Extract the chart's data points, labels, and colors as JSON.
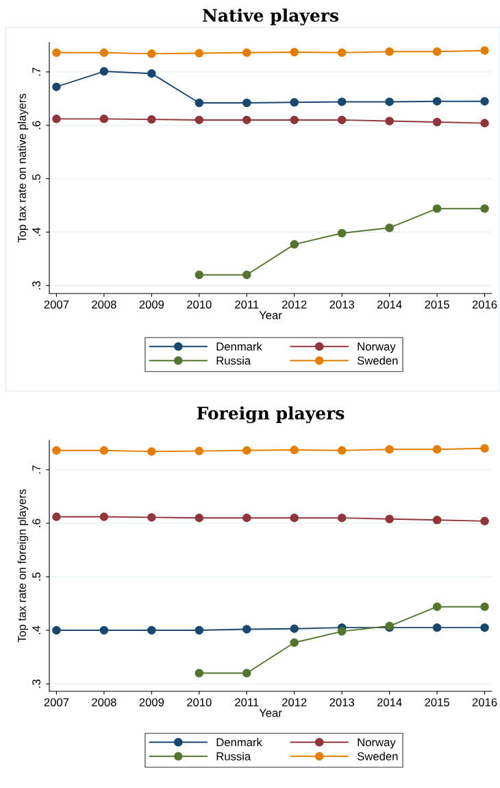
{
  "chart_data": [
    {
      "type": "line",
      "title": "Native players",
      "xlabel": "Year",
      "ylabel": "Top tax rate on native players",
      "x": [
        2007,
        2008,
        2009,
        2010,
        2011,
        2012,
        2013,
        2014,
        2015,
        2016
      ],
      "series": [
        {
          "name": "Denmark",
          "color": "#1a476f",
          "values": [
            0.672,
            0.701,
            0.697,
            0.642,
            0.642,
            0.643,
            0.644,
            0.644,
            0.645,
            0.645
          ]
        },
        {
          "name": "Norway",
          "color": "#90353b",
          "values": [
            0.612,
            0.612,
            0.611,
            0.61,
            0.61,
            0.61,
            0.61,
            0.608,
            0.606,
            0.604
          ]
        },
        {
          "name": "Russia",
          "color": "#55752f",
          "values": [
            null,
            null,
            null,
            0.32,
            0.32,
            0.377,
            0.398,
            0.408,
            0.444,
            0.444
          ]
        },
        {
          "name": "Sweden",
          "color": "#e37e00",
          "values": [
            0.736,
            0.736,
            0.734,
            0.735,
            0.736,
            0.737,
            0.736,
            0.738,
            0.738,
            0.74
          ]
        }
      ],
      "xlim": [
        2006.85,
        2016.15
      ],
      "xticks": [
        2007,
        2008,
        2009,
        2010,
        2011,
        2012,
        2013,
        2014,
        2015,
        2016
      ],
      "ylim": [
        0.285,
        0.755
      ],
      "yticks": [
        {
          "value": 0.3,
          "label": ".3"
        },
        {
          "value": 0.4,
          "label": ".4"
        },
        {
          "value": 0.5,
          "label": ".5"
        },
        {
          "value": 0.6,
          "label": ".6"
        },
        {
          "value": 0.7,
          "label": ".7"
        }
      ],
      "grid": "y",
      "legend": "bottom",
      "marker": "circle",
      "line_style": "solid"
    },
    {
      "type": "line",
      "title": "Foreign players",
      "xlabel": "Year",
      "ylabel": "Top tax rate on foreign players",
      "x": [
        2007,
        2008,
        2009,
        2010,
        2011,
        2012,
        2013,
        2014,
        2015,
        2016
      ],
      "series": [
        {
          "name": "Denmark",
          "color": "#1a476f",
          "values": [
            0.4,
            0.4,
            0.4,
            0.4,
            0.402,
            0.403,
            0.405,
            0.405,
            0.405,
            0.405
          ]
        },
        {
          "name": "Norway",
          "color": "#90353b",
          "values": [
            0.612,
            0.612,
            0.611,
            0.61,
            0.61,
            0.61,
            0.61,
            0.608,
            0.606,
            0.604
          ]
        },
        {
          "name": "Russia",
          "color": "#55752f",
          "values": [
            null,
            null,
            null,
            0.32,
            0.32,
            0.377,
            0.398,
            0.408,
            0.444,
            0.444
          ]
        },
        {
          "name": "Sweden",
          "color": "#e37e00",
          "values": [
            0.736,
            0.736,
            0.734,
            0.735,
            0.736,
            0.737,
            0.736,
            0.738,
            0.738,
            0.74
          ]
        }
      ],
      "xlim": [
        2006.85,
        2016.15
      ],
      "xticks": [
        2007,
        2008,
        2009,
        2010,
        2011,
        2012,
        2013,
        2014,
        2015,
        2016
      ],
      "ylim": [
        0.286,
        0.755
      ],
      "yticks": [
        {
          "value": 0.3,
          "label": ".3"
        },
        {
          "value": 0.4,
          "label": ".4"
        },
        {
          "value": 0.5,
          "label": ".5"
        },
        {
          "value": 0.6,
          "label": ".6"
        },
        {
          "value": 0.7,
          "label": ".7"
        }
      ],
      "grid": "y",
      "legend": "bottom",
      "marker": "circle",
      "line_style": "solid"
    }
  ]
}
